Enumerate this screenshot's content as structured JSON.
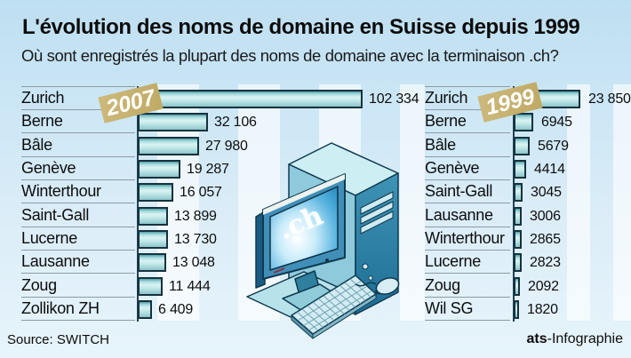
{
  "header": {
    "title": "L'évolution des noms de domaine en Suisse depuis 1999",
    "subtitle": "Où sont enregistrés la plupart des noms de domaine avec la terminaison .ch?"
  },
  "chart_data": [
    {
      "type": "bar",
      "orientation": "horizontal",
      "year_badge": "2007",
      "categories": [
        "Zurich",
        "Berne",
        "Bâle",
        "Genève",
        "Winterthour",
        "Saint-Gall",
        "Lucerne",
        "Lausanne",
        "Zoug",
        "Zollikon ZH"
      ],
      "values": [
        102334,
        32106,
        27980,
        19287,
        16057,
        13899,
        13730,
        13048,
        11444,
        6409
      ],
      "value_labels": [
        "102 334",
        "32 106",
        "27 980",
        "19 287",
        "16 057",
        "13 899",
        "13 730",
        "13 048",
        "11 444",
        "6 409"
      ],
      "xlim": [
        0,
        102334
      ],
      "grid": false,
      "legend": "none"
    },
    {
      "type": "bar",
      "orientation": "horizontal",
      "year_badge": "1999",
      "categories": [
        "Zurich",
        "Berne",
        "Bâle",
        "Genève",
        "Saint-Gall",
        "Lausanne",
        "Winterthour",
        "Lucerne",
        "Zoug",
        "Wil SG"
      ],
      "values": [
        23850,
        6945,
        5679,
        4414,
        3045,
        3006,
        2865,
        2823,
        2092,
        1820
      ],
      "value_labels": [
        "23 850",
        "6945",
        "5679",
        "4414",
        "3045",
        "3006",
        "2865",
        "2823",
        "2092",
        "1820"
      ],
      "xlim": [
        0,
        23850
      ],
      "grid": false,
      "legend": "none"
    }
  ],
  "illustration": {
    "screen_text": ".ch"
  },
  "footer": {
    "source": "Source: SWITCH",
    "credit_bold": "ats",
    "credit_regular": "-Infographie"
  },
  "colors": {
    "background_top": "#bedff1",
    "background_bottom": "#e7f4fb",
    "stripe": "#ffffff",
    "bar_fill_light": "#dbf2f2",
    "bar_fill_dark": "#55a0ab",
    "bar_border": "#16323e",
    "badge": "#c5b06e",
    "badge_text": "#ffffff",
    "separator": "#8f9ba1",
    "text": "#0d0d0d",
    "screen_blue": "#3ea0d4"
  }
}
